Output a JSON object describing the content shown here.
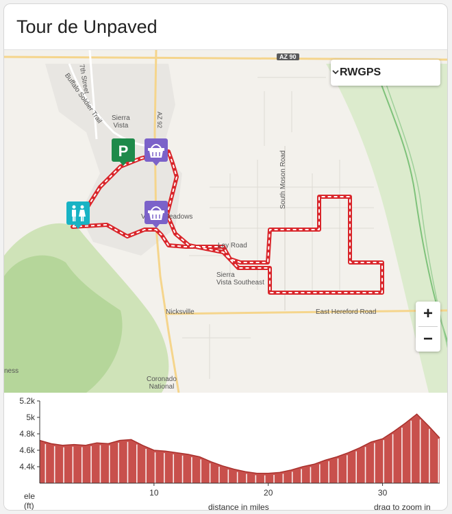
{
  "title": "Tour de Unpaved",
  "map": {
    "layer_select": {
      "value": "RWGPS"
    },
    "zoom_in": "+",
    "zoom_out": "−",
    "labels": {
      "highway": "AZ 90",
      "street_7th": "7th Street",
      "buffalo": "Buffalo Soldier Trail",
      "sierra_vista": "Sierra\nVista",
      "road_92": "AZ 92",
      "village_meadows": "Village Meadows",
      "moson": "South Moson Road",
      "ley": "Ley Road",
      "sierra_se": "Sierra\nVista Southeast",
      "nicksville": "Nicksville",
      "hereford": "East Hereford Road",
      "coronado": "Coronado\nNational",
      "ness": "ness"
    },
    "markers": [
      {
        "name": "parking-marker",
        "icon": "parking-icon",
        "color": "#1e8a4a",
        "glyph": "P"
      },
      {
        "name": "shop-marker-north",
        "icon": "basket-icon",
        "color": "#7b62c9"
      },
      {
        "name": "restroom-marker",
        "icon": "restroom-icon",
        "color": "#18b3c4"
      },
      {
        "name": "shop-marker-south",
        "icon": "basket-icon",
        "color": "#7b62c9"
      }
    ],
    "route_color": "#d9262b"
  },
  "elevation": {
    "y_unit": "ele\n(ft)",
    "x_label": "distance in miles",
    "hint": "drag to zoom in"
  },
  "chart_data": {
    "type": "area",
    "xlabel": "distance in miles",
    "ylabel": "ele (ft)",
    "xlim": [
      0,
      35
    ],
    "ylim": [
      4200,
      5200
    ],
    "yticks": [
      4400,
      4600,
      4800,
      5000,
      5200
    ],
    "ytick_labels": [
      "4.4k",
      "4.6k",
      "4.8k",
      "5k",
      "5.2k"
    ],
    "xticks": [
      10,
      20,
      30
    ],
    "color": "#c8504c",
    "x": [
      0,
      1,
      2,
      3,
      4,
      5,
      6,
      7,
      8,
      9,
      10,
      11,
      12,
      13,
      14,
      15,
      16,
      17,
      18,
      19,
      20,
      21,
      22,
      23,
      24,
      25,
      26,
      27,
      28,
      29,
      30,
      31,
      32,
      33,
      34,
      35
    ],
    "y": [
      4720,
      4680,
      4660,
      4670,
      4660,
      4690,
      4680,
      4720,
      4730,
      4660,
      4600,
      4590,
      4570,
      4550,
      4520,
      4460,
      4410,
      4370,
      4340,
      4320,
      4320,
      4330,
      4360,
      4400,
      4430,
      4480,
      4520,
      4570,
      4630,
      4700,
      4740,
      4830,
      4930,
      5040,
      4900,
      4750
    ]
  }
}
